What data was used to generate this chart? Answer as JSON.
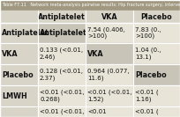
{
  "title": "Table F7.11   Network meta-analysis pairwise results: Hip fracture surgery, intervention class c",
  "col_headers": [
    "",
    "Antiplatelet",
    "VKA",
    "Placebo"
  ],
  "row_headers": [
    "Antiplatelet",
    "VKA",
    "Placebo",
    "LMWH",
    ""
  ],
  "cells": [
    [
      "Antiplatelet",
      "7.54 (0.406,\n>100)",
      "7.83 (0.,\n>100)"
    ],
    [
      "0.133 (<0.01,\n2.46)",
      "VKA",
      "1.04 (0.,\n13.1)"
    ],
    [
      "0.128 (<0.01,\n2.37)",
      "0.964 (0.077,\n11.6)",
      "Placebo"
    ],
    [
      "<0.01 (<0.01,\n0.268)",
      "<0.01 (<0.01,\n1.52)",
      "<0.01 (\n1.16)"
    ],
    [
      "<0.01 (<0.01,",
      "<0.01",
      "<0.01 ("
    ]
  ],
  "title_bg": "#a09880",
  "table_bg": "#d8d4c8",
  "header_row_bg": "#d8d4c8",
  "cell_bg_light": "#e8e4d8",
  "cell_bg_diagonal": "#c8c4b8",
  "border_color": "#ffffff",
  "text_color": "#111111",
  "bold_color": "#111111",
  "title_fontsize": 3.5,
  "header_fontsize": 5.8,
  "cell_fontsize": 5.0,
  "row_label_fontsize": 5.8
}
